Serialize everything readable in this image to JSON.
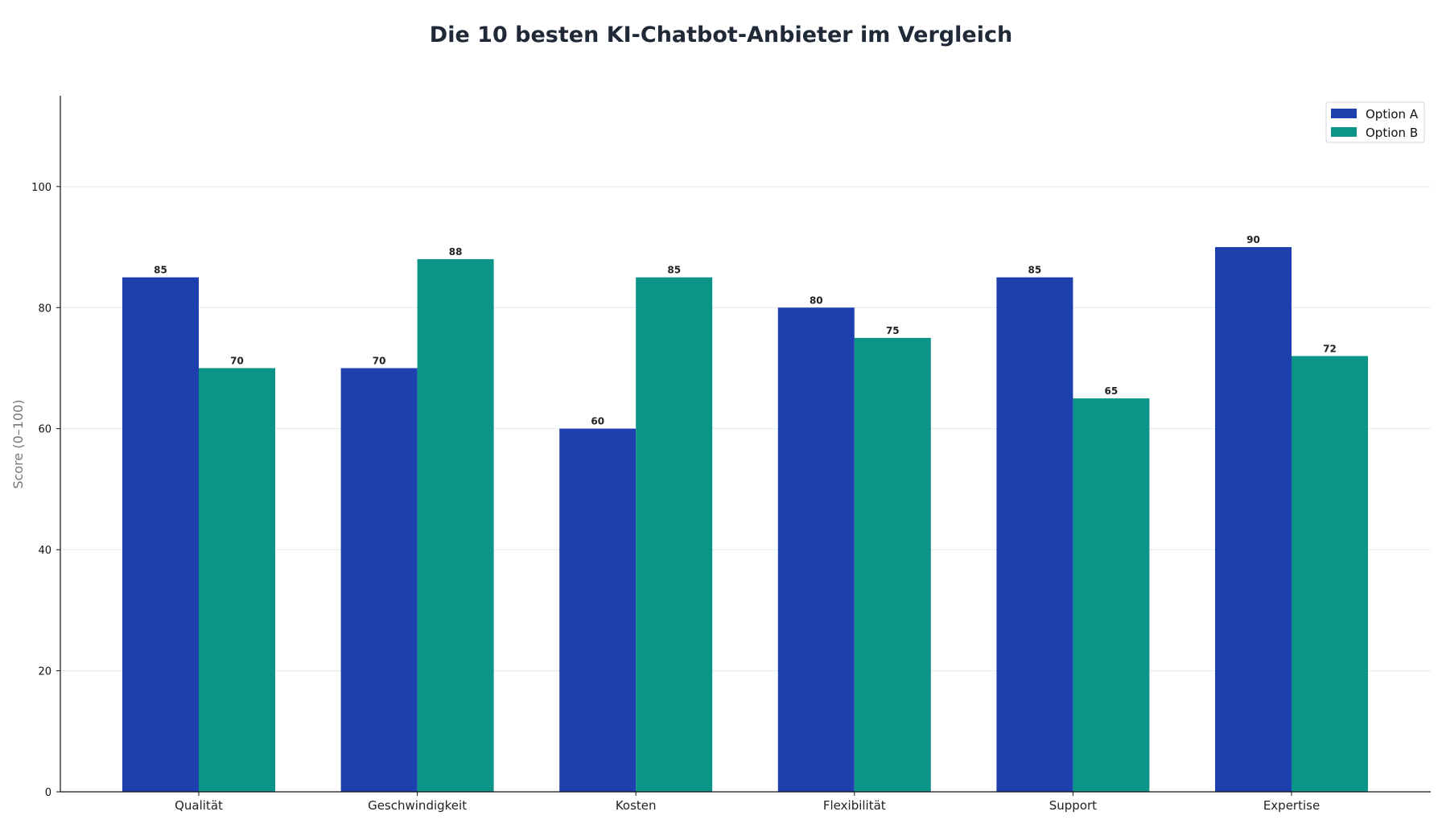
{
  "chart_data": {
    "type": "bar",
    "title": "Die 10 besten KI-Chatbot-Anbieter im Vergleich",
    "xlabel": "",
    "ylabel": "Score (0–100)",
    "ylim": [
      0,
      115
    ],
    "yticks": [
      0,
      20,
      40,
      60,
      80,
      100
    ],
    "grid": true,
    "legend_position": "top-right",
    "categories": [
      "Qualität",
      "Geschwindigkeit",
      "Kosten",
      "Flexibilität",
      "Support",
      "Expertise"
    ],
    "series": [
      {
        "name": "Option A",
        "color": "#1e40af",
        "values": [
          85,
          70,
          60,
          80,
          85,
          90
        ]
      },
      {
        "name": "Option B",
        "color": "#0d9488",
        "values": [
          70,
          88,
          85,
          75,
          65,
          72
        ]
      }
    ]
  }
}
